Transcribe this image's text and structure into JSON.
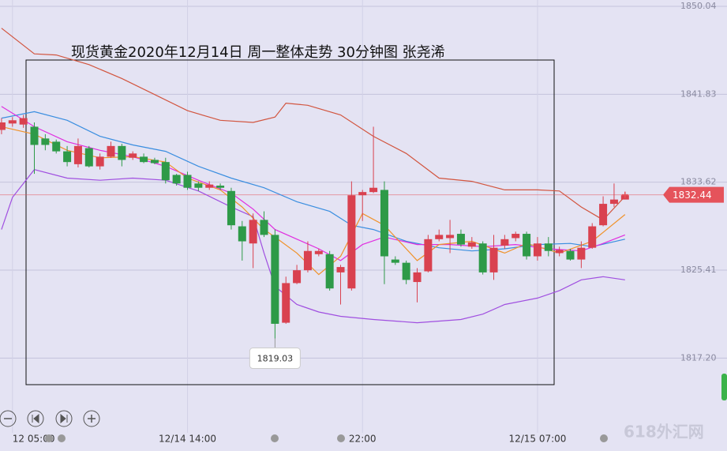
{
  "chart_data": {
    "type": "candlestick",
    "title": "现货黄金2020年12月14日 周一整体走势 30分钟图 张尧浠",
    "ylim": [
      1810.22,
      1850.63
    ],
    "yticks": [
      1850.04,
      1841.83,
      1833.62,
      1825.41,
      {
        "value": 1817.2,
        "label": "1817.20"
      }
    ],
    "xlim": [
      -0.14,
      61.2
    ],
    "xticks": [
      {
        "value": 1,
        "label": "12 05:00"
      },
      {
        "value": 17,
        "label": "12/14 14:00"
      },
      {
        "value": 33,
        "label": "22:00"
      },
      {
        "value": 49,
        "label": "12/15 07:00"
      }
    ],
    "up_color": "#d9414f",
    "down_color": "#2e9a48",
    "open": [
      1838.5,
      1839.1,
      1839.0,
      1838.8,
      1837.7,
      1837.4,
      1836.5,
      1835.3,
      1836.8,
      1835.1,
      1836.0,
      1837.0,
      1835.9,
      1836.0,
      1835.7,
      1835.5,
      1834.3,
      1834.3,
      1833.5,
      1833.1,
      1833.3,
      1832.8,
      1829.5,
      1827.9,
      1830.1,
      1828.7,
      1820.5,
      1824.2,
      1825.4,
      1826.9,
      1826.9,
      1825.2,
      1823.7,
      1832.4,
      1832.7,
      1832.9,
      1826.4,
      1826.1,
      1824.3,
      1825.3,
      1828.3,
      1828.4,
      1828.8,
      1827.6,
      1827.9,
      1825.2,
      1827.7,
      1828.4,
      1828.8,
      1826.7,
      1827.9,
      1827.0,
      1827.2,
      1826.4,
      1827.5,
      1829.6,
      1831.6,
      1832.0
    ],
    "high": [
      1839.6,
      1839.7,
      1839.9,
      1839.2,
      1838.1,
      1837.6,
      1837.0,
      1837.7,
      1837.0,
      1836.3,
      1837.4,
      1837.2,
      1836.5,
      1836.3,
      1835.9,
      1835.9,
      1834.4,
      1834.6,
      1833.7,
      1833.7,
      1833.5,
      1833.1,
      1830.0,
      1830.7,
      1830.9,
      1829.2,
      1824.8,
      1825.9,
      1828.1,
      1827.4,
      1827.2,
      1825.9,
      1833.7,
      1832.9,
      1838.8,
      1833.7,
      1826.7,
      1826.3,
      1825.6,
      1828.7,
      1829.2,
      1830.1,
      1829.2,
      1828.5,
      1828.1,
      1828.7,
      1828.7,
      1829.0,
      1829.0,
      1828.5,
      1828.5,
      1827.6,
      1827.4,
      1828.1,
      1829.8,
      1832.3,
      1833.5,
      1832.6
    ],
    "low": [
      1838.1,
      1838.8,
      1838.7,
      1834.4,
      1836.6,
      1836.3,
      1835.1,
      1835.0,
      1835.0,
      1834.8,
      1835.9,
      1835.1,
      1835.7,
      1835.4,
      1835.3,
      1833.5,
      1833.3,
      1832.9,
      1832.8,
      1832.9,
      1832.9,
      1829.2,
      1826.3,
      1825.6,
      1828.5,
      1819.03,
      1820.4,
      1824.1,
      1825.2,
      1826.7,
      1823.5,
      1822.2,
      1823.5,
      1830.0,
      1832.6,
      1824.1,
      1825.9,
      1824.1,
      1822.4,
      1825.2,
      1828.1,
      1827.0,
      1827.6,
      1827.4,
      1825.0,
      1824.5,
      1827.4,
      1828.1,
      1826.4,
      1826.3,
      1826.7,
      1826.7,
      1826.3,
      1825.6,
      1827.4,
      1829.5,
      1831.3,
      1832.2
    ],
    "close": [
      1839.2,
      1839.4,
      1839.6,
      1837.1,
      1837.1,
      1836.5,
      1835.5,
      1837.0,
      1835.1,
      1836.0,
      1837.0,
      1835.7,
      1836.3,
      1835.5,
      1835.4,
      1833.8,
      1833.5,
      1833.1,
      1833.1,
      1833.4,
      1833.1,
      1829.6,
      1828.1,
      1830.1,
      1828.7,
      1820.4,
      1824.2,
      1825.4,
      1827.2,
      1827.2,
      1823.7,
      1825.7,
      1832.4,
      1832.7,
      1833.1,
      1826.7,
      1826.1,
      1824.5,
      1825.2,
      1828.3,
      1828.7,
      1828.7,
      1827.8,
      1828.0,
      1825.2,
      1827.5,
      1828.3,
      1828.8,
      1826.7,
      1827.9,
      1827.2,
      1827.3,
      1826.4,
      1827.5,
      1829.5,
      1831.6,
      1832.0,
      1832.4
    ],
    "overlays": [
      {
        "color": "#d2553f",
        "x": [
          0,
          3,
          5,
          8,
          11,
          14,
          17,
          20,
          23,
          25,
          26,
          28,
          31,
          34,
          37,
          40,
          43,
          46,
          49,
          51,
          53,
          55,
          57
        ],
        "values": [
          1848.0,
          1845.6,
          1845.5,
          1844.6,
          1843.3,
          1841.8,
          1840.3,
          1839.4,
          1839.2,
          1839.7,
          1841.0,
          1840.8,
          1839.9,
          1837.9,
          1836.3,
          1834.0,
          1833.7,
          1832.9,
          1832.9,
          1832.8,
          1831.3,
          1830.1,
          1832.3
        ]
      },
      {
        "color": "#3a8ee0",
        "x": [
          0,
          3,
          6,
          9,
          12,
          15,
          18,
          21,
          24,
          27,
          30,
          32,
          34,
          37,
          40,
          43,
          46,
          49,
          52,
          54,
          57
        ],
        "values": [
          1839.6,
          1840.2,
          1839.4,
          1837.9,
          1837.1,
          1836.5,
          1835.1,
          1834.0,
          1833.1,
          1831.8,
          1830.9,
          1829.6,
          1829.2,
          1828.1,
          1827.5,
          1827.2,
          1827.4,
          1827.8,
          1827.9,
          1827.6,
          1828.3
        ]
      },
      {
        "color": "#a04fe0",
        "x": [
          0,
          1,
          3,
          6,
          9,
          12,
          15,
          18,
          21,
          23,
          24,
          25,
          27,
          29,
          31,
          34,
          38,
          42,
          44,
          46,
          49,
          51,
          53,
          55,
          57
        ],
        "values": [
          1829.2,
          1832.2,
          1834.8,
          1834.0,
          1833.8,
          1834.0,
          1833.8,
          1832.8,
          1831.3,
          1830.4,
          1827.0,
          1823.9,
          1822.2,
          1821.5,
          1821.1,
          1820.8,
          1820.5,
          1820.8,
          1821.3,
          1822.2,
          1822.8,
          1823.5,
          1824.5,
          1824.8,
          1824.5
        ]
      },
      {
        "color": "#e02ee0",
        "x": [
          0,
          3,
          6,
          9,
          12,
          15,
          18,
          21,
          23,
          25,
          27,
          29,
          31,
          33,
          35,
          38,
          41,
          44,
          47,
          50,
          53,
          55,
          57
        ],
        "values": [
          1840.7,
          1838.8,
          1837.4,
          1836.6,
          1836.0,
          1835.1,
          1833.8,
          1832.6,
          1831.1,
          1829.2,
          1828.3,
          1827.4,
          1826.3,
          1827.8,
          1828.5,
          1827.8,
          1827.8,
          1827.6,
          1827.8,
          1827.4,
          1827.2,
          1827.9,
          1828.7
        ]
      },
      {
        "color": "#f0922a",
        "x": [
          0,
          3,
          6,
          9,
          12,
          15,
          17,
          20,
          22,
          24,
          25,
          27,
          29,
          31,
          33,
          35,
          38,
          40,
          43,
          46,
          48,
          51,
          54,
          57
        ],
        "values": [
          1838.8,
          1838.1,
          1836.6,
          1835.9,
          1836.0,
          1835.5,
          1834.0,
          1832.9,
          1831.3,
          1829.2,
          1828.5,
          1827.0,
          1825.0,
          1826.7,
          1830.7,
          1829.6,
          1826.3,
          1827.8,
          1828.1,
          1827.0,
          1827.9,
          1827.0,
          1828.1,
          1830.6
        ]
      }
    ],
    "last_price": 1832.44,
    "last_price_color": "#e5535b",
    "annotations": [
      {
        "x": 25,
        "value": 1819.03
      }
    ],
    "watermark": "618外汇网"
  }
}
